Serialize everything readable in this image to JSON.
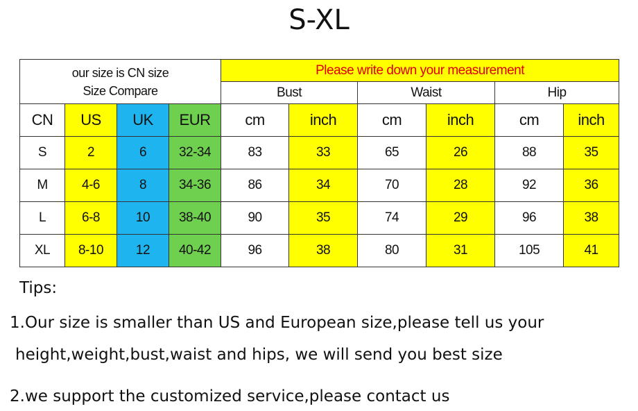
{
  "title": "S-XL",
  "table": {
    "compare_title": [
      "our size is CN size",
      "Size Compare"
    ],
    "measure_title": "Please write down your measurement",
    "groups": [
      "Bust",
      "Waist",
      "Hip"
    ],
    "columns": [
      "CN",
      "US",
      "UK",
      "EUR",
      "cm",
      "inch",
      "cm",
      "inch",
      "cm",
      "inch"
    ],
    "rows": [
      [
        "S",
        2,
        6,
        "32-34",
        83,
        33,
        65,
        26,
        88,
        35
      ],
      [
        "M",
        "4-6",
        8,
        "34-36",
        86,
        34,
        70,
        28,
        92,
        36
      ],
      [
        "L",
        "6-8",
        10,
        "38-40",
        90,
        35,
        74,
        29,
        96,
        38
      ],
      [
        "XL",
        "8-10",
        12,
        "40-42",
        96,
        38,
        80,
        31,
        105,
        41
      ]
    ]
  },
  "tips": {
    "heading": "Tips:",
    "lines": [
      "1.Our size is smaller than US and European size,please tell us your",
      "height,weight,bust,waist and hips, we will send you best size",
      "2.we support the customized service,please contact us"
    ]
  }
}
